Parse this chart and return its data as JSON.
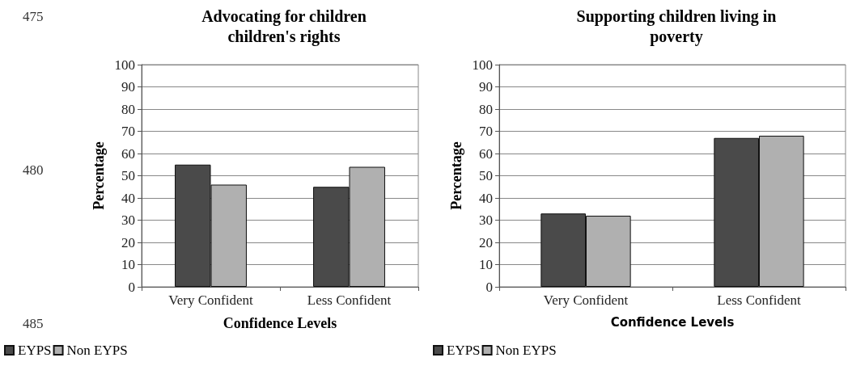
{
  "chart_data": [
    {
      "type": "bar",
      "title": "Advocating for children\nchildren's rights",
      "xlabel": "Confidence Levels",
      "ylabel": "Percentage",
      "categories": [
        "Very Confident",
        "Less Confident"
      ],
      "series": [
        {
          "name": "EYPS",
          "color": "#4a4a4a",
          "values": [
            55,
            45
          ]
        },
        {
          "name": "Non EYPS",
          "color": "#b0b0b0",
          "values": [
            46,
            54
          ]
        }
      ],
      "ylim": [
        0,
        100
      ],
      "yticks": [
        0,
        10,
        20,
        30,
        40,
        50,
        60,
        70,
        80,
        90,
        100
      ],
      "grid": "y",
      "legend": "bottom left",
      "annotations": [
        "475",
        "480",
        "485"
      ]
    },
    {
      "type": "bar",
      "title": "Supporting children living in\npoverty",
      "xlabel": "Confidence Levels",
      "ylabel": "Percentage",
      "categories": [
        "Very Confident",
        "Less Confident"
      ],
      "series": [
        {
          "name": "EYPS",
          "color": "#4a4a4a",
          "values": [
            33,
            67
          ]
        },
        {
          "name": "Non EYPS",
          "color": "#b0b0b0",
          "values": [
            32,
            68
          ]
        }
      ],
      "ylim": [
        0,
        100
      ],
      "yticks": [
        0,
        10,
        20,
        30,
        40,
        50,
        60,
        70,
        80,
        90,
        100
      ],
      "grid": "y",
      "legend": "bottom left"
    }
  ]
}
